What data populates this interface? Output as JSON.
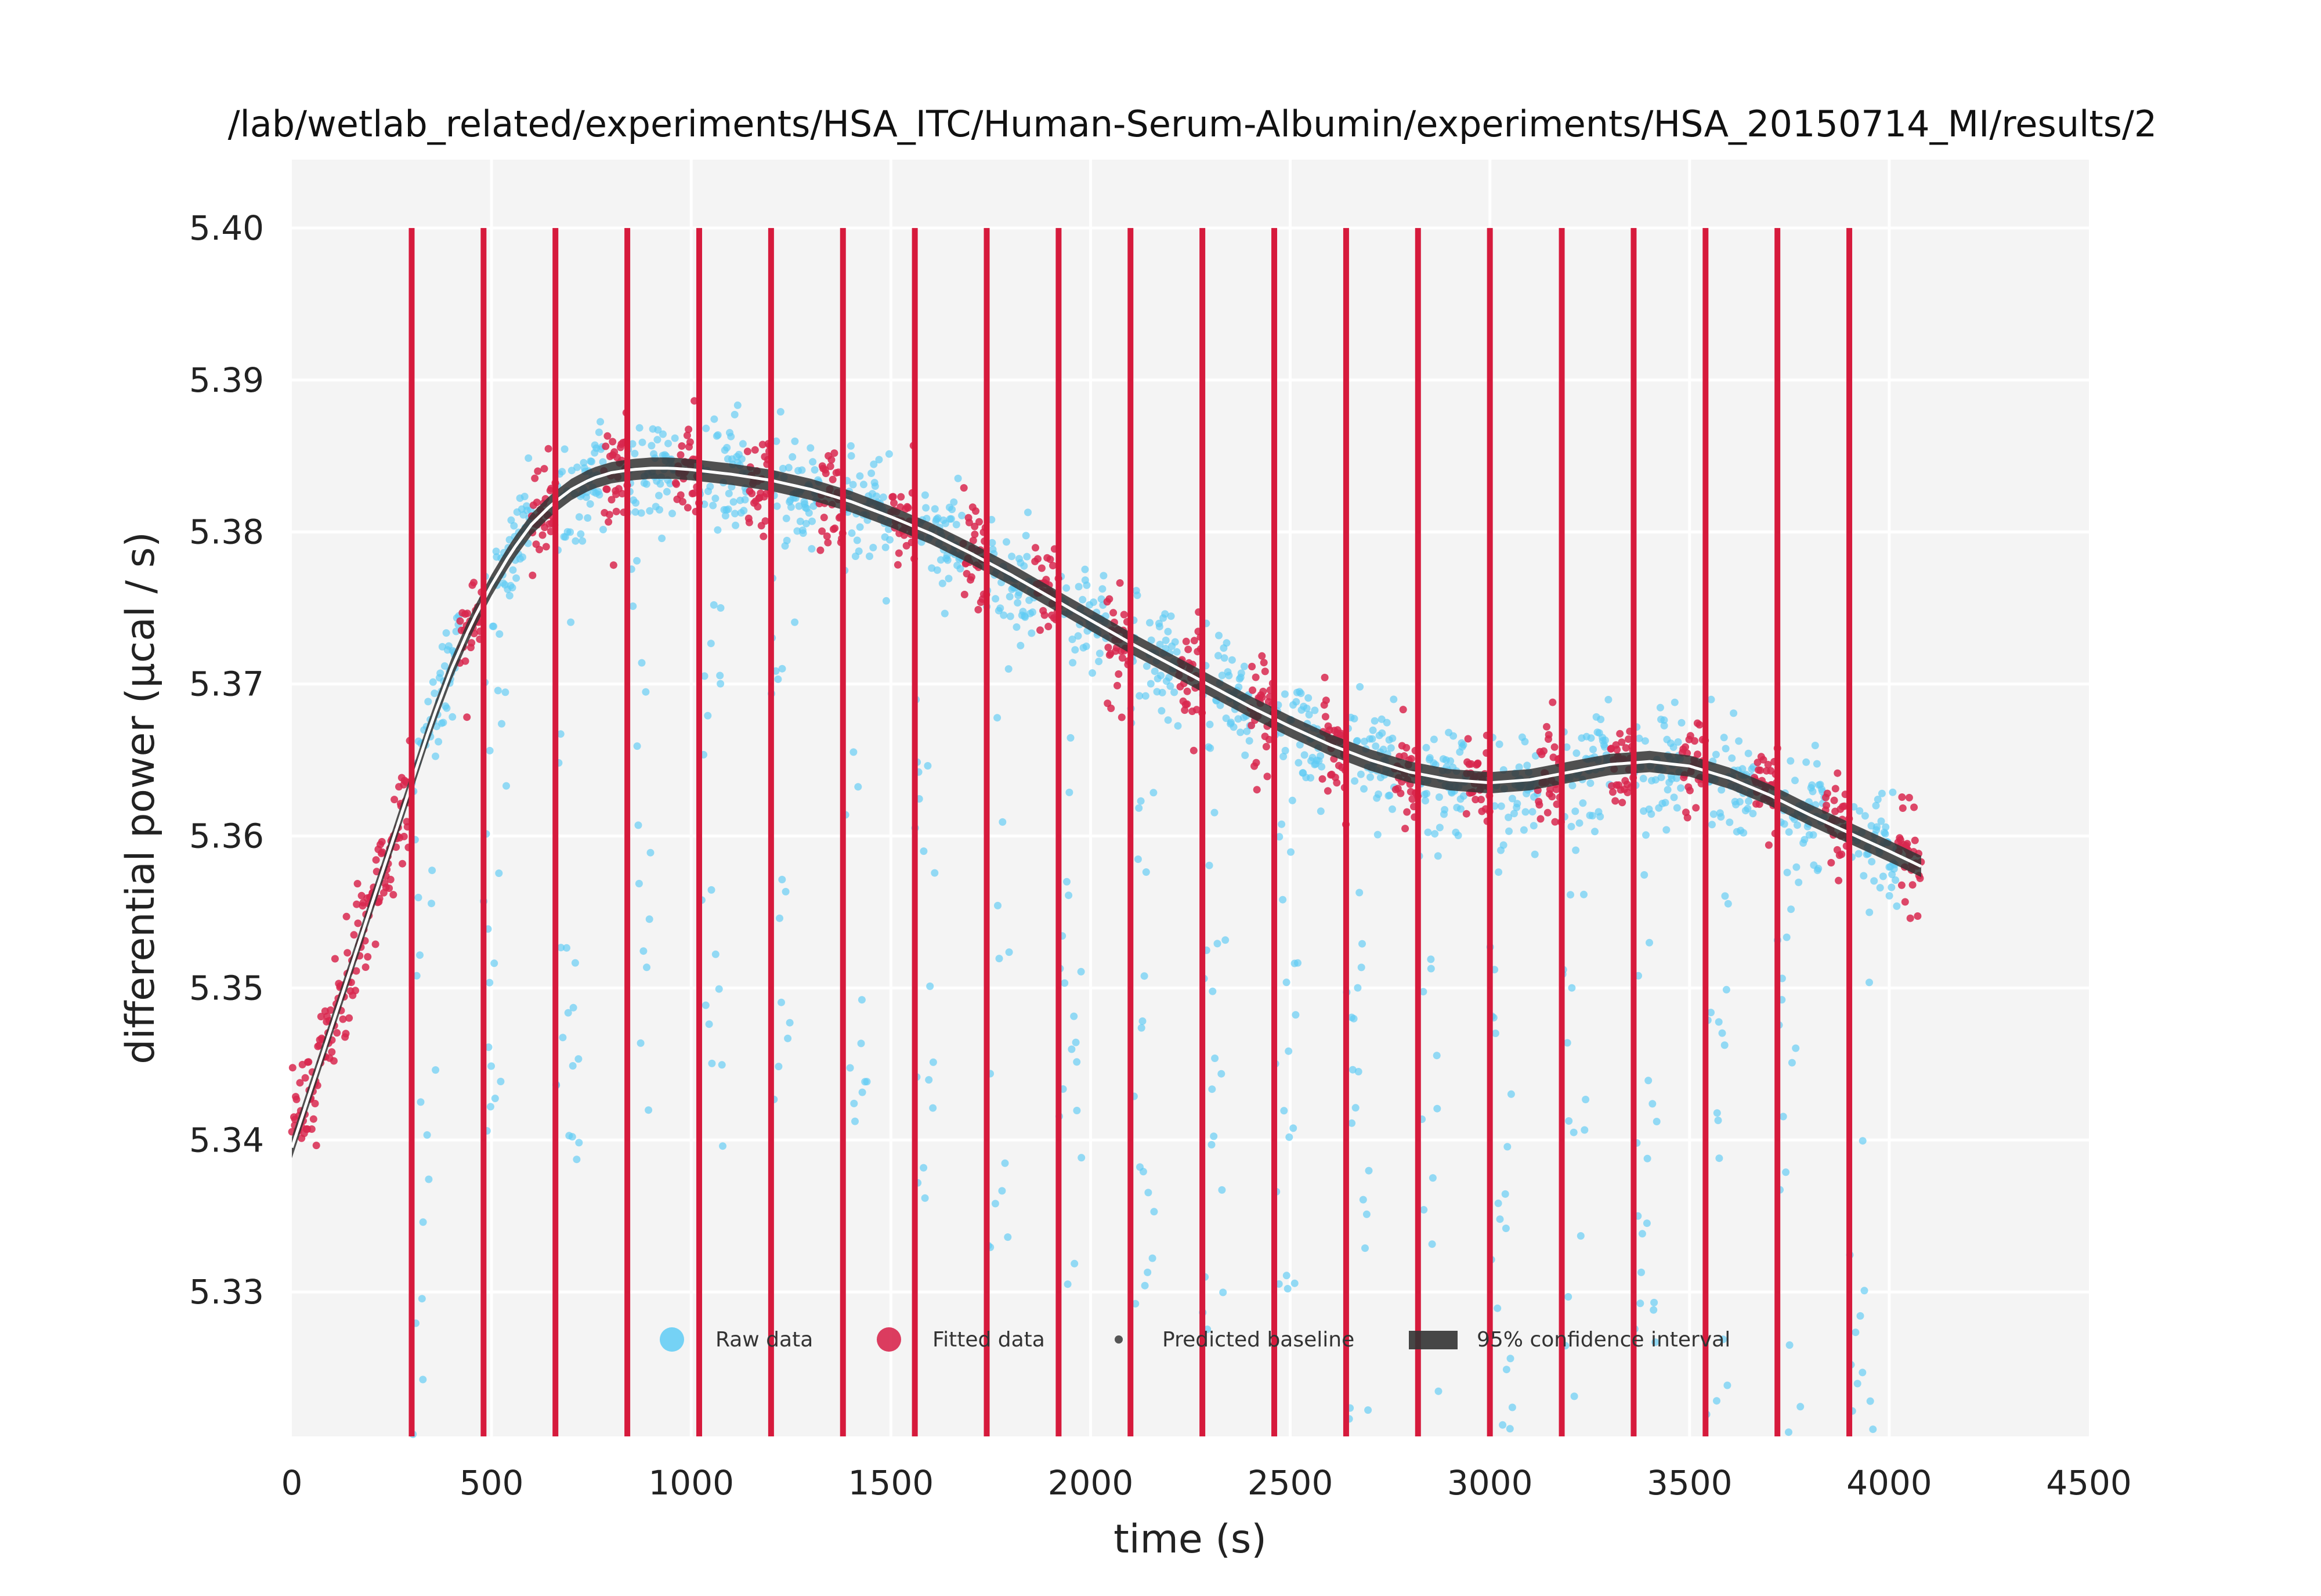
{
  "chart_data": {
    "type": "scatter",
    "title": "/lab/wetlab_related/experiments/HSA_ITC/Human-Serum-Albumin/experiments/HSA_20150714_MI/results/2",
    "xlabel": "time (s)",
    "ylabel": "differential power (μcal / s)",
    "xlim": [
      0,
      4500
    ],
    "ylim": [
      5.3205,
      5.4045
    ],
    "x_ticks": [
      "0",
      "500",
      "1000",
      "1500",
      "2000",
      "2500",
      "3000",
      "3500",
      "4000",
      "4500"
    ],
    "y_ticks": [
      "5.33",
      "5.34",
      "5.35",
      "5.36",
      "5.37",
      "5.38",
      "5.39",
      "5.40"
    ],
    "grid": true,
    "legend_position": "bottom-center",
    "legend": [
      {
        "label": "Raw data",
        "marker": "circle",
        "color": "#5ecbf5"
      },
      {
        "label": "Fitted data",
        "marker": "circle",
        "color": "#d8284f"
      },
      {
        "label": "Predicted baseline",
        "marker": "small-dot",
        "color": "#555555"
      },
      {
        "label": "95% confidence interval",
        "marker": "patch",
        "color": "#333333"
      }
    ],
    "injection_lines": {
      "color": "#d61a3c",
      "x": [
        300,
        480,
        660,
        840,
        1020,
        1200,
        1380,
        1560,
        1740,
        1920,
        2100,
        2280,
        2460,
        2640,
        2820,
        3000,
        3180,
        3360,
        3540,
        3720,
        3900
      ],
      "y_range": [
        5.3205,
        5.4
      ]
    },
    "baseline": {
      "x": [
        0,
        50,
        100,
        150,
        200,
        250,
        300,
        350,
        400,
        450,
        500,
        550,
        600,
        650,
        700,
        750,
        800,
        850,
        900,
        950,
        1000,
        1100,
        1200,
        1300,
        1400,
        1500,
        1600,
        1700,
        1800,
        1900,
        2000,
        2100,
        2200,
        2300,
        2400,
        2500,
        2600,
        2700,
        2800,
        2900,
        3000,
        3100,
        3200,
        3300,
        3400,
        3500,
        3600,
        3700,
        3800,
        3900,
        4000,
        4080
      ],
      "y": [
        5.3395,
        5.3435,
        5.3475,
        5.3515,
        5.3555,
        5.3595,
        5.3635,
        5.3675,
        5.371,
        5.374,
        5.3765,
        5.3787,
        5.3805,
        5.3818,
        5.3828,
        5.3835,
        5.3839,
        5.3841,
        5.3842,
        5.3842,
        5.3841,
        5.3838,
        5.3834,
        5.3828,
        5.382,
        5.381,
        5.3799,
        5.3786,
        5.3772,
        5.3757,
        5.3742,
        5.3727,
        5.3713,
        5.3699,
        5.3685,
        5.3672,
        5.366,
        5.365,
        5.3642,
        5.3637,
        5.3635,
        5.3637,
        5.3642,
        5.3647,
        5.3649,
        5.3646,
        5.3638,
        5.3627,
        5.3614,
        5.3602,
        5.359,
        5.358
      ]
    },
    "baseline_ci_halfwidth": 0.0007,
    "raw_data": {
      "color": "#5ecbf5",
      "x_range": [
        0,
        4080
      ],
      "noise_sd": 0.0018,
      "approx_points": 2200
    },
    "fitted_data": {
      "color": "#d8284f",
      "segments": [
        {
          "x": [
            0,
            300
          ]
        },
        {
          "x": [
            420,
            480
          ]
        },
        {
          "x": [
            600,
            660
          ]
        },
        {
          "x": [
            780,
            840
          ]
        },
        {
          "x": [
            960,
            1020
          ]
        },
        {
          "x": [
            1140,
            1200
          ]
        },
        {
          "x": [
            1320,
            1380
          ]
        },
        {
          "x": [
            1500,
            1560
          ]
        },
        {
          "x": [
            1680,
            1740
          ]
        },
        {
          "x": [
            1860,
            1920
          ]
        },
        {
          "x": [
            2040,
            2100
          ]
        },
        {
          "x": [
            2220,
            2280
          ]
        },
        {
          "x": [
            2400,
            2460
          ]
        },
        {
          "x": [
            2580,
            2640
          ]
        },
        {
          "x": [
            2760,
            2820
          ]
        },
        {
          "x": [
            2940,
            3000
          ]
        },
        {
          "x": [
            3120,
            3180
          ]
        },
        {
          "x": [
            3300,
            3360
          ]
        },
        {
          "x": [
            3480,
            3540
          ]
        },
        {
          "x": [
            3660,
            3720
          ]
        },
        {
          "x": [
            3840,
            3900
          ]
        },
        {
          "x": [
            4020,
            4080
          ]
        }
      ]
    }
  }
}
